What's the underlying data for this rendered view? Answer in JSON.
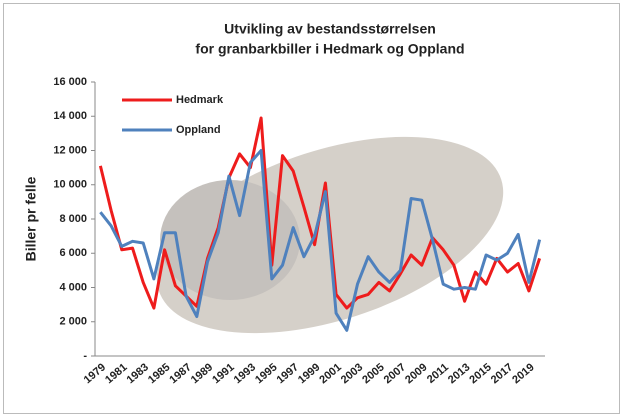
{
  "chart_data": {
    "type": "line",
    "title": "Utvikling av bestandsstørrelsen",
    "subtitle": "for granbarkbiller i Hedmark og Oppland",
    "y_label": "Biller pr felle",
    "categories": [
      "1979",
      null,
      "1981",
      null,
      "1983",
      null,
      "1985",
      null,
      "1987",
      null,
      "1989",
      null,
      "1991",
      null,
      "1993",
      null,
      "1995",
      null,
      "1997",
      null,
      "1999",
      null,
      "2001",
      null,
      "2003",
      null,
      "2005",
      null,
      "2007",
      null,
      "2009",
      null,
      "2011",
      null,
      "2013",
      null,
      "2015",
      null,
      "2017",
      null,
      "2019",
      null
    ],
    "series": [
      {
        "name": "Hedmark",
        "color": "#ee1c1c",
        "values": [
          11100,
          8500,
          6200,
          6300,
          4300,
          2800,
          6200,
          4100,
          3500,
          2900,
          5700,
          7500,
          10400,
          11800,
          11000,
          13900,
          5300,
          11700,
          10800,
          8700,
          6500,
          10100,
          3600,
          2800,
          3400,
          3600,
          4300,
          3800,
          4800,
          5900,
          5300,
          6900,
          6200,
          5300,
          3200,
          4900,
          4200,
          5700,
          4900,
          5400,
          3800,
          5700
        ]
      },
      {
        "name": "Oppland",
        "color": "#4f81bd",
        "values": [
          8400,
          7600,
          6400,
          6700,
          6600,
          4500,
          7200,
          7200,
          3500,
          2300,
          5500,
          7200,
          10500,
          8200,
          11300,
          12000,
          4500,
          5300,
          7500,
          5800,
          7000,
          9600,
          2500,
          1500,
          4200,
          5800,
          4900,
          4300,
          5000,
          9200,
          9100,
          6800,
          4200,
          3900,
          4000,
          3900,
          5900,
          5600,
          6000,
          7100,
          4300,
          6800
        ]
      }
    ],
    "ylim": [
      0,
      16000
    ],
    "yticks": [
      {
        "value": 0,
        "label": "-"
      },
      {
        "value": 2000,
        "label": "2 000"
      },
      {
        "value": 4000,
        "label": "4 000"
      },
      {
        "value": 6000,
        "label": "6 000"
      },
      {
        "value": 8000,
        "label": "8 000"
      },
      {
        "value": 10000,
        "label": "10 000"
      },
      {
        "value": 12000,
        "label": "12 000"
      },
      {
        "value": 14000,
        "label": "14 000"
      },
      {
        "value": 16000,
        "label": "16 000"
      }
    ],
    "grid": false,
    "legend": "top-left"
  }
}
